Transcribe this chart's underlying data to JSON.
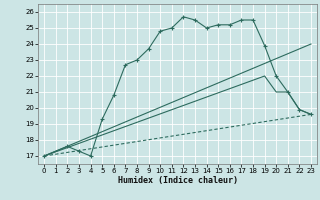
{
  "xlabel": "Humidex (Indice chaleur)",
  "ylabel": "",
  "bg_color": "#cce5e5",
  "grid_color": "#ffffff",
  "line_color": "#2d6b5e",
  "xlim": [
    -0.5,
    23.5
  ],
  "ylim": [
    16.5,
    26.5
  ],
  "xticks": [
    0,
    1,
    2,
    3,
    4,
    5,
    6,
    7,
    8,
    9,
    10,
    11,
    12,
    13,
    14,
    15,
    16,
    17,
    18,
    19,
    20,
    21,
    22,
    23
  ],
  "yticks": [
    17,
    18,
    19,
    20,
    21,
    22,
    23,
    24,
    25,
    26
  ],
  "series_main": {
    "x": [
      0,
      2,
      3,
      4,
      5,
      6,
      7,
      8,
      9,
      10,
      11,
      12,
      13,
      14,
      15,
      16,
      17,
      18,
      19,
      20,
      21,
      22,
      23
    ],
    "y": [
      17.0,
      17.6,
      17.3,
      17.0,
      19.3,
      20.8,
      22.7,
      23.0,
      23.7,
      24.8,
      25.0,
      25.7,
      25.5,
      25.0,
      25.2,
      25.2,
      25.5,
      25.5,
      23.9,
      22.0,
      21.0,
      19.9,
      19.6
    ]
  },
  "series_line1": {
    "x": [
      0,
      23
    ],
    "y": [
      17.0,
      24.0
    ],
    "linestyle": "-"
  },
  "series_line2": {
    "x": [
      0,
      19,
      20,
      21,
      22,
      23
    ],
    "y": [
      17.0,
      22.0,
      21.0,
      21.0,
      19.9,
      19.6
    ],
    "linestyle": "-"
  },
  "series_line3": {
    "x": [
      0,
      23
    ],
    "y": [
      17.0,
      19.6
    ],
    "linestyle": "--"
  }
}
